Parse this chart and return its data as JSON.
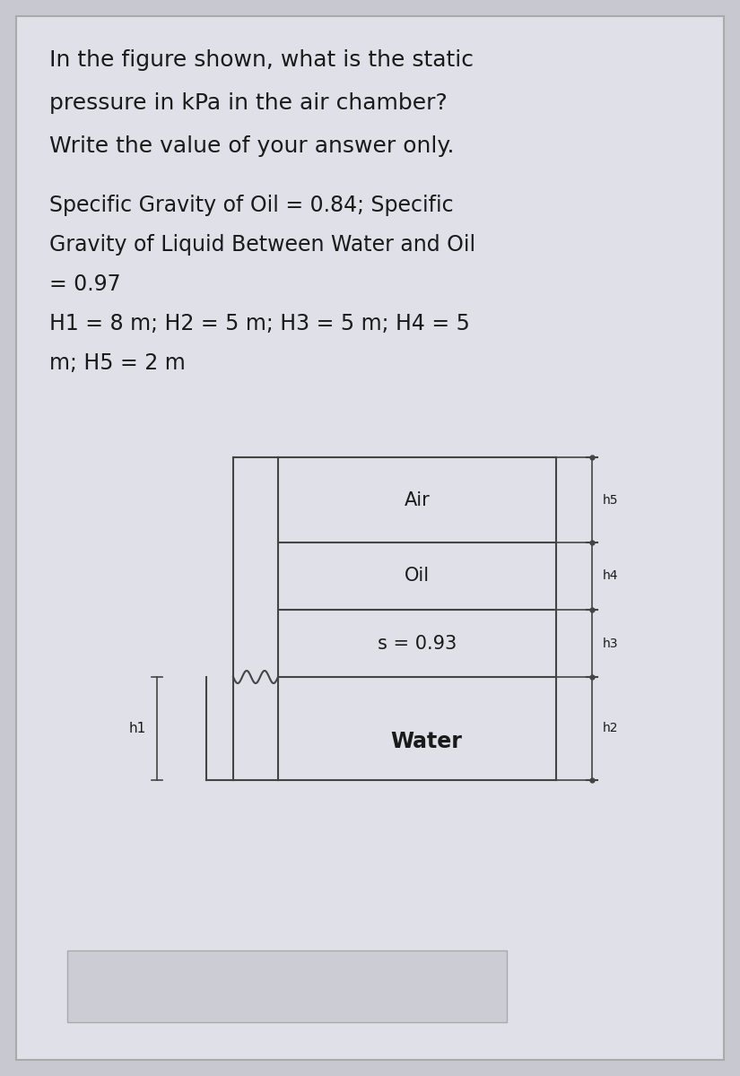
{
  "bg_color": "#c8c8d0",
  "card_color": "#e0e0e8",
  "title_lines": [
    "In the figure shown, what is the static",
    "pressure in kPa in the air chamber?",
    "Write the value of your answer only."
  ],
  "param_lines": [
    "Specific Gravity of Oil = 0.84; Specific",
    "Gravity of Liquid Between Water and Oil",
    "= 0.97",
    "H1 = 8 m; H2 = 5 m; H3 = 5 m; H4 = 5",
    "m; H5 = 2 m"
  ],
  "text_color": "#1a1a1a",
  "line_color": "#444444",
  "font_size_title": 18,
  "font_size_param": 17,
  "font_size_label": 15,
  "font_size_dim": 9
}
